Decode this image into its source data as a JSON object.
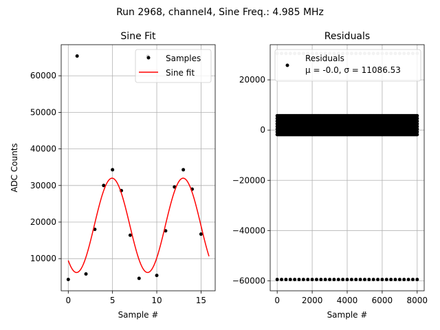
{
  "suptitle": "Run 2968, channel4, Sine Freq.: 4.985 MHz",
  "chart_data": [
    {
      "type": "scatter",
      "title": "Sine Fit",
      "xlabel": "Sample #",
      "ylabel": "ADC Counts",
      "xlim": [
        -0.8,
        16.6
      ],
      "ylim": [
        1200,
        68500
      ],
      "xticks": [
        0,
        5,
        10,
        15
      ],
      "yticks": [
        10000,
        20000,
        30000,
        40000,
        50000,
        60000
      ],
      "grid": true,
      "legend": {
        "placement": "top-right",
        "entries": [
          "Samples",
          "Sine fit"
        ]
      },
      "series": [
        {
          "name": "Samples",
          "style": "points",
          "color": "#000000",
          "x": [
            0,
            1,
            2,
            3,
            4,
            5,
            6,
            7,
            8,
            9,
            10,
            11,
            12,
            13,
            14,
            15
          ],
          "y": [
            4300,
            65400,
            5800,
            18000,
            30000,
            34300,
            28600,
            16400,
            4600,
            65300,
            5400,
            17600,
            29600,
            34300,
            29000,
            16700
          ]
        },
        {
          "name": "Sine fit",
          "style": "line",
          "color": "#ff0000",
          "function": {
            "offset": 19100,
            "amplitude": 12900,
            "period": 8.03,
            "peak_at": 4.95
          },
          "x_range": [
            0,
            15.9
          ]
        }
      ]
    },
    {
      "type": "scatter",
      "title": "Residuals",
      "xlabel": "Sample #",
      "ylabel": "",
      "xlim": [
        -400,
        8400
      ],
      "ylim": [
        -64000,
        34000
      ],
      "xticks": [
        0,
        2000,
        4000,
        6000,
        8000
      ],
      "yticks": [
        -60000,
        -40000,
        -20000,
        0,
        20000
      ],
      "grid": true,
      "legend": {
        "placement": "top-right",
        "entries": [
          "Residuals"
        ],
        "stats_text": "μ = -0.0, σ = 11086.53"
      },
      "series": [
        {
          "name": "Residuals",
          "style": "points",
          "color": "#000000",
          "band": {
            "x_range": [
              0,
              8000
            ],
            "y_min": -1800,
            "y_max": 5700
          },
          "outlier_row": {
            "y": -59500,
            "x_range": [
              0,
              8000
            ],
            "x_step": 250
          },
          "top_row": {
            "y": 30500,
            "x_range": [
              0,
              8000
            ],
            "x_step": 250,
            "color": "#c0c0c0"
          }
        }
      ]
    }
  ]
}
